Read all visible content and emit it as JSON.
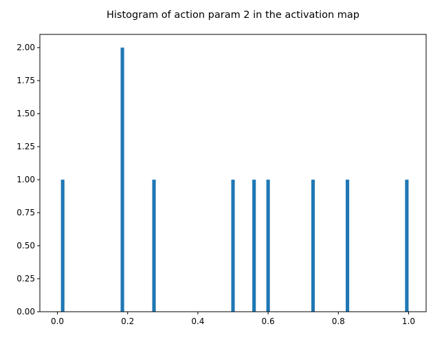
{
  "chart_data": {
    "type": "bar",
    "subtype": "histogram",
    "title": "Histogram of action param 2 in the activation map",
    "xlabel": "",
    "ylabel": "",
    "xlim": [
      -0.05,
      1.05
    ],
    "ylim": [
      0.0,
      2.1
    ],
    "bin_width": 0.01,
    "bar_color": "#1f77b4",
    "grid": false,
    "x_ticks": [
      {
        "value": 0.0,
        "label": "0.0"
      },
      {
        "value": 0.2,
        "label": "0.2"
      },
      {
        "value": 0.4,
        "label": "0.4"
      },
      {
        "value": 0.6,
        "label": "0.6"
      },
      {
        "value": 0.8,
        "label": "0.8"
      },
      {
        "value": 1.0,
        "label": "1.0"
      }
    ],
    "y_ticks": [
      {
        "value": 0.0,
        "label": "0.00"
      },
      {
        "value": 0.25,
        "label": "0.25"
      },
      {
        "value": 0.5,
        "label": "0.50"
      },
      {
        "value": 0.75,
        "label": "0.75"
      },
      {
        "value": 1.0,
        "label": "1.00"
      },
      {
        "value": 1.25,
        "label": "1.25"
      },
      {
        "value": 1.5,
        "label": "1.50"
      },
      {
        "value": 1.75,
        "label": "1.75"
      },
      {
        "value": 2.0,
        "label": "2.00"
      }
    ],
    "bins": [
      {
        "x": 0.015,
        "count": 1
      },
      {
        "x": 0.185,
        "count": 2
      },
      {
        "x": 0.275,
        "count": 1
      },
      {
        "x": 0.5,
        "count": 1
      },
      {
        "x": 0.56,
        "count": 1
      },
      {
        "x": 0.6,
        "count": 1
      },
      {
        "x": 0.728,
        "count": 1
      },
      {
        "x": 0.826,
        "count": 1
      },
      {
        "x": 0.995,
        "count": 1
      }
    ]
  }
}
